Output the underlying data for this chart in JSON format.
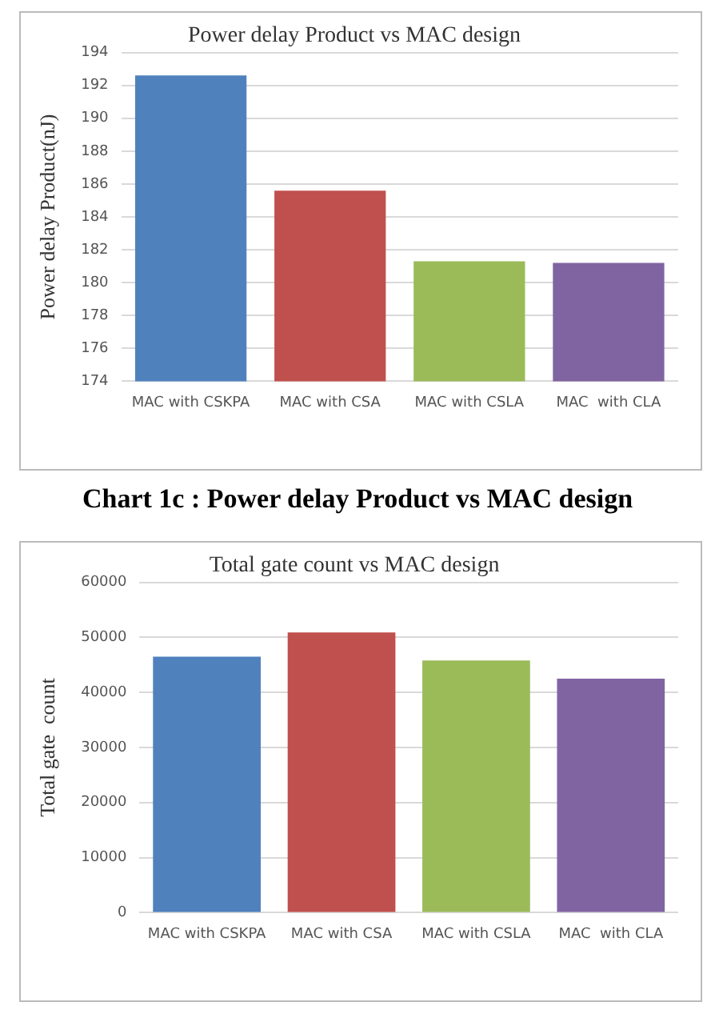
{
  "chart_data": [
    {
      "type": "bar",
      "title": "Power delay Product vs MAC design",
      "ylabel": "Power delay Product(nJ)",
      "categories": [
        "MAC with CSKPA",
        "MAC with CSA",
        "MAC with CSLA",
        "MAC  with CLA"
      ],
      "values": [
        192.6,
        185.6,
        181.3,
        181.2
      ],
      "colors": [
        "#4f81bd",
        "#c0504d",
        "#9bbb59",
        "#8064a2"
      ],
      "ylim": [
        174,
        194
      ],
      "yticks": [
        174,
        176,
        178,
        180,
        182,
        184,
        186,
        188,
        190,
        192,
        194
      ],
      "grid": "y",
      "legend": false,
      "annotations": [
        "Chart 1c : Power delay Product vs MAC design"
      ]
    },
    {
      "type": "bar",
      "title": "Total gate count vs MAC design",
      "ylabel": "Total gate  count",
      "categories": [
        "MAC with CSKPA",
        "MAC with CSA",
        "MAC with CSLA",
        "MAC  with CLA"
      ],
      "values": [
        46500,
        50900,
        45800,
        42500
      ],
      "colors": [
        "#4f81bd",
        "#c0504d",
        "#9bbb59",
        "#8064a2"
      ],
      "ylim": [
        0,
        60000
      ],
      "yticks": [
        0,
        10000,
        20000,
        30000,
        40000,
        50000,
        60000
      ],
      "grid": "y",
      "legend": false
    }
  ]
}
